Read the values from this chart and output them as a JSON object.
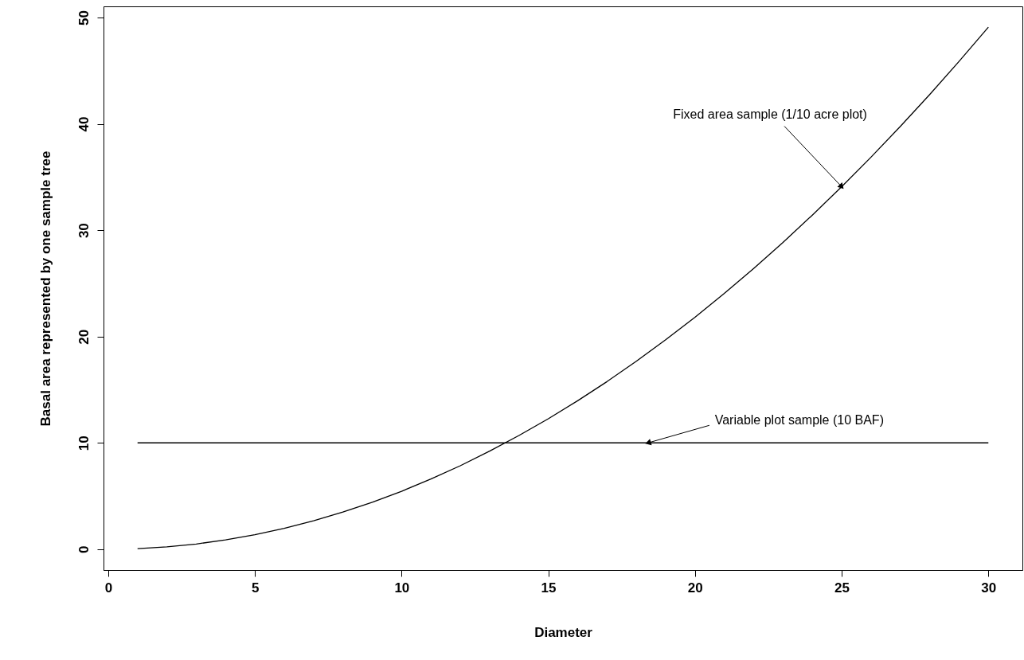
{
  "chart_data": {
    "type": "line",
    "xlabel": "Diameter",
    "ylabel": "Basal area represented by one sample tree",
    "series": [
      {
        "color": "#000000",
        "x": [
          1,
          2,
          3,
          4,
          5,
          6,
          7,
          8,
          9,
          10,
          11,
          12,
          13,
          14,
          15,
          16,
          17,
          18,
          19,
          20,
          21,
          22,
          23,
          24,
          25,
          26,
          27,
          28,
          29,
          30
        ],
        "values": [
          0.05,
          0.22,
          0.49,
          0.87,
          1.36,
          1.96,
          2.67,
          3.49,
          4.42,
          5.45,
          6.6,
          7.85,
          9.22,
          10.69,
          12.27,
          13.96,
          15.76,
          17.67,
          19.69,
          21.82,
          24.05,
          26.4,
          28.85,
          31.42,
          34.09,
          36.87,
          39.76,
          42.76,
          45.87,
          49.09
        ]
      },
      {
        "color": "#000000",
        "x": [
          1,
          30
        ],
        "values": [
          10,
          10
        ]
      }
    ],
    "xlim": [
      -0.16,
      31.16
    ],
    "ylim": [
      -1.96,
      51.05
    ],
    "xticks": [
      0,
      5,
      10,
      15,
      20,
      25,
      30
    ],
    "yticks": [
      0,
      10,
      20,
      30,
      40,
      50
    ],
    "grid": false,
    "marker": "none",
    "line_style": "solid",
    "annotations": [
      {
        "text": "Fixed area sample (1/10 acre plot)",
        "x": 25,
        "y": 34.09
      },
      {
        "text": "Variable plot sample (10 BAF)",
        "x": 18.4,
        "y": 10
      }
    ]
  }
}
